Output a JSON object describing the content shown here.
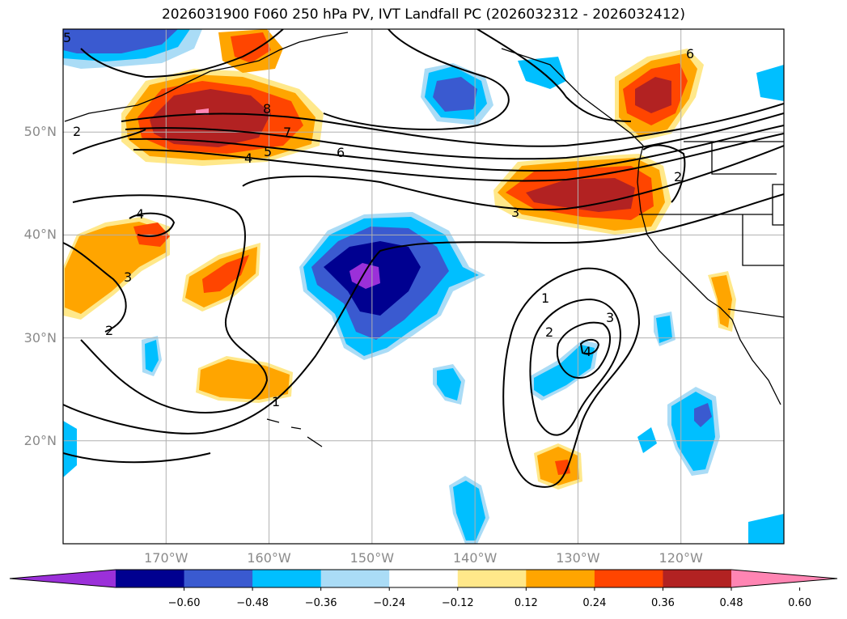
{
  "title": "2026031900 F060 250 hPa PV, IVT Landfall PC (2026032312 - 2026032412)",
  "map": {
    "lon_range": [
      -180,
      -110
    ],
    "lat_range": [
      10,
      60
    ],
    "lat_ticks": [
      {
        "value": 50,
        "label": "50°N"
      },
      {
        "value": 40,
        "label": "40°N"
      },
      {
        "value": 30,
        "label": "30°N"
      },
      {
        "value": 20,
        "label": "20°N"
      }
    ],
    "lon_ticks": [
      {
        "value": -170,
        "label": "170°W"
      },
      {
        "value": -160,
        "label": "160°W"
      },
      {
        "value": -150,
        "label": "150°W"
      },
      {
        "value": -140,
        "label": "140°W"
      },
      {
        "value": -130,
        "label": "130°W"
      },
      {
        "value": -120,
        "label": "120°W"
      }
    ],
    "grid": true,
    "contour_labels": [
      "8",
      "7",
      "6",
      "5",
      "4",
      "3",
      "2",
      "1",
      "2",
      "3",
      "4",
      "6",
      "2",
      "4",
      "3",
      "2",
      "1",
      "5"
    ]
  },
  "colorbar": {
    "colors": [
      "#9b30d9",
      "#000090",
      "#3a5ad0",
      "#00bfff",
      "#aadcf6",
      "#ffffff",
      "#ffe88a",
      "#ffa500",
      "#ff4500",
      "#b22222",
      "#ff85b3"
    ],
    "tick_labels": [
      "−0.60",
      "−0.48",
      "−0.36",
      "−0.24",
      "−0.12",
      "0.12",
      "0.24",
      "0.36",
      "0.48",
      "0.60"
    ]
  }
}
